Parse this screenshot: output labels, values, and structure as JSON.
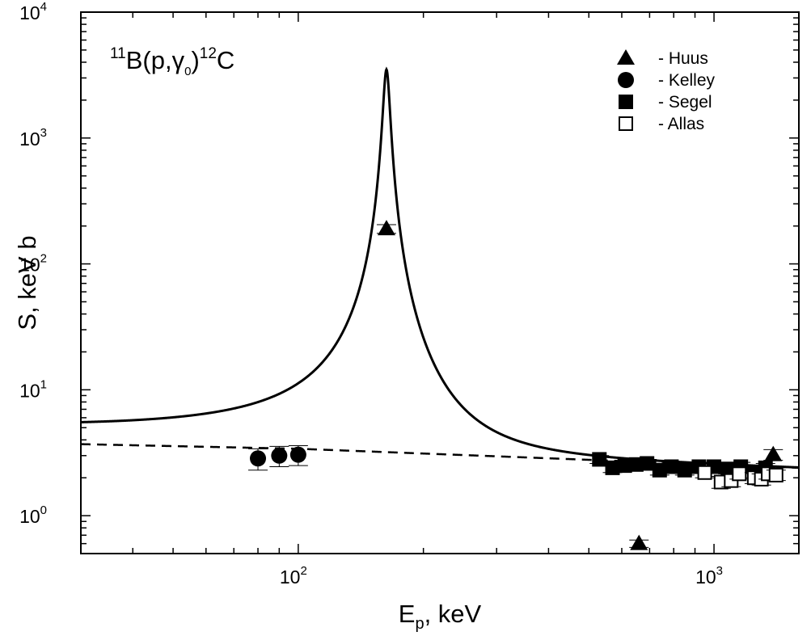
{
  "chart_data": {
    "type": "scatter",
    "x_scale": "log",
    "y_scale": "log",
    "xlim": [
      30,
      1600
    ],
    "ylim": [
      0.5,
      10000
    ],
    "xlabel": {
      "main": "E",
      "sub": "p",
      "rest": ", keV"
    },
    "ylabel": "S, keV b",
    "x_ticks": [
      {
        "value": 100,
        "base": "10",
        "exp": "2"
      },
      {
        "value": 1000,
        "base": "10",
        "exp": "3"
      }
    ],
    "y_ticks": [
      {
        "value": 1,
        "base": "10",
        "exp": "0"
      },
      {
        "value": 10,
        "base": "10",
        "exp": "1"
      },
      {
        "value": 100,
        "base": "10",
        "exp": "2"
      },
      {
        "value": 1000,
        "base": "10",
        "exp": "3"
      },
      {
        "value": 10000,
        "base": "10",
        "exp": "4"
      }
    ],
    "annotation": {
      "pre": "11",
      "a": "B(p,",
      "g": "γ",
      "gsub": "0",
      "b": ")",
      "post": "12",
      "c": "C"
    },
    "legend_position": "top-right",
    "fit_curves": [
      {
        "style": "solid",
        "background": [
          [
            30,
            3.75
          ],
          [
            100,
            3.35
          ],
          [
            1600,
            2.4
          ]
        ],
        "resonance": {
          "energy_keV": 163,
          "peak": 3500,
          "half_width_keV": 3.0
        }
      },
      {
        "style": "dashed",
        "points": [
          [
            30,
            3.7
          ],
          [
            100,
            3.4
          ],
          [
            1600,
            2.4
          ]
        ]
      }
    ],
    "series": [
      {
        "name": "- Huus",
        "marker": "triangle-filled",
        "points": [
          {
            "x": 163,
            "y": 190,
            "err": 15
          },
          {
            "x": 660,
            "y": 0.6,
            "err": 0.04
          },
          {
            "x": 1388,
            "y": 3.05,
            "err": 0.3
          }
        ]
      },
      {
        "name": "- Kelley",
        "marker": "circle-filled",
        "points": [
          {
            "x": 80,
            "y": 2.85,
            "err": 0.55
          },
          {
            "x": 90,
            "y": 3.0,
            "err": 0.55
          },
          {
            "x": 100,
            "y": 3.05,
            "err": 0.55
          }
        ]
      },
      {
        "name": "- Segel",
        "marker": "square-filled",
        "points": [
          {
            "x": 530,
            "y": 2.8,
            "err": 0.2
          },
          {
            "x": 570,
            "y": 2.4,
            "err": 0.2
          },
          {
            "x": 610,
            "y": 2.5,
            "err": 0.2
          },
          {
            "x": 650,
            "y": 2.55,
            "err": 0.2
          },
          {
            "x": 690,
            "y": 2.6,
            "err": 0.2
          },
          {
            "x": 740,
            "y": 2.3,
            "err": 0.2
          },
          {
            "x": 790,
            "y": 2.45,
            "err": 0.2
          },
          {
            "x": 850,
            "y": 2.3,
            "err": 0.2
          },
          {
            "x": 920,
            "y": 2.45,
            "err": 0.2
          },
          {
            "x": 1000,
            "y": 2.45,
            "err": 0.2
          },
          {
            "x": 1080,
            "y": 2.35,
            "err": 0.2
          },
          {
            "x": 1160,
            "y": 2.45,
            "err": 0.2
          },
          {
            "x": 1250,
            "y": 2.2,
            "err": 0.2
          },
          {
            "x": 1330,
            "y": 2.4,
            "err": 0.2
          }
        ]
      },
      {
        "name": "- Allas",
        "marker": "square-open",
        "points": [
          {
            "x": 950,
            "y": 2.2,
            "err": 0.2
          },
          {
            "x": 1040,
            "y": 1.85,
            "err": 0.2
          },
          {
            "x": 1100,
            "y": 1.9,
            "err": 0.2
          },
          {
            "x": 1150,
            "y": 2.15,
            "err": 0.2
          },
          {
            "x": 1250,
            "y": 2.0,
            "err": 0.2
          },
          {
            "x": 1300,
            "y": 1.95,
            "err": 0.2
          },
          {
            "x": 1350,
            "y": 2.15,
            "err": 0.2
          },
          {
            "x": 1410,
            "y": 2.1,
            "err": 0.2
          }
        ]
      }
    ]
  }
}
